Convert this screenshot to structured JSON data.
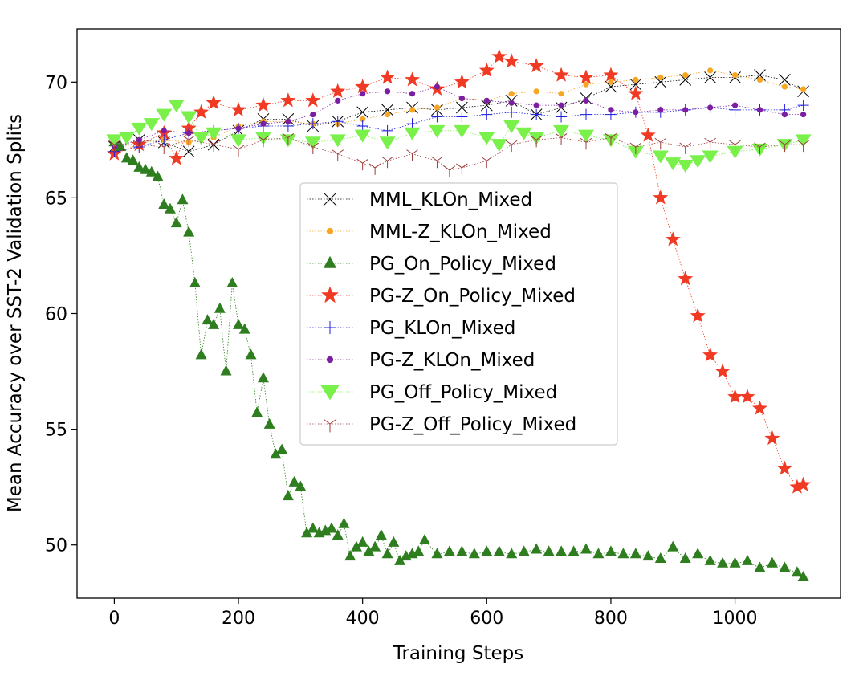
{
  "chart_data": {
    "type": "line",
    "title": "",
    "xlabel": "Training Steps",
    "ylabel": "Mean Accuracy over SST-2 Validation Splits",
    "xlim": [
      -60,
      1170
    ],
    "ylim": [
      47.7,
      72.3
    ],
    "xticks": [
      0,
      200,
      400,
      600,
      800,
      1000
    ],
    "yticks": [
      50,
      55,
      60,
      65,
      70
    ],
    "grid": false,
    "legend_position": "center",
    "series": [
      {
        "name": "MML_KLOn_Mixed",
        "color": "#000000",
        "marker": "x",
        "points": [
          [
            0,
            67.2
          ],
          [
            40,
            67.5
          ],
          [
            80,
            67.4
          ],
          [
            120,
            67.0
          ],
          [
            160,
            67.3
          ],
          [
            200,
            67.9
          ],
          [
            240,
            68.4
          ],
          [
            280,
            68.4
          ],
          [
            320,
            68.1
          ],
          [
            360,
            68.3
          ],
          [
            400,
            68.7
          ],
          [
            440,
            68.8
          ],
          [
            480,
            68.9
          ],
          [
            520,
            68.8
          ],
          [
            560,
            68.9
          ],
          [
            600,
            69.0
          ],
          [
            640,
            69.2
          ],
          [
            680,
            68.6
          ],
          [
            720,
            68.9
          ],
          [
            760,
            69.3
          ],
          [
            800,
            69.8
          ],
          [
            840,
            69.9
          ],
          [
            880,
            70.0
          ],
          [
            920,
            70.1
          ],
          [
            960,
            70.2
          ],
          [
            1000,
            70.2
          ],
          [
            1040,
            70.3
          ],
          [
            1080,
            70.1
          ],
          [
            1110,
            69.6
          ]
        ]
      },
      {
        "name": "MML-Z_KLOn_Mixed",
        "color": "#f5a623",
        "marker": "o-small",
        "points": [
          [
            0,
            67.1
          ],
          [
            40,
            67.4
          ],
          [
            80,
            67.5
          ],
          [
            120,
            67.4
          ],
          [
            160,
            67.6
          ],
          [
            200,
            68.1
          ],
          [
            240,
            68.3
          ],
          [
            280,
            68.3
          ],
          [
            320,
            68.2
          ],
          [
            360,
            68.2
          ],
          [
            400,
            68.4
          ],
          [
            440,
            68.6
          ],
          [
            480,
            68.8
          ],
          [
            520,
            68.9
          ],
          [
            560,
            69.3
          ],
          [
            600,
            69.2
          ],
          [
            640,
            69.5
          ],
          [
            680,
            69.6
          ],
          [
            720,
            69.5
          ],
          [
            760,
            69.9
          ],
          [
            800,
            70.0
          ],
          [
            840,
            70.1
          ],
          [
            880,
            70.2
          ],
          [
            920,
            70.3
          ],
          [
            960,
            70.5
          ],
          [
            1000,
            70.3
          ],
          [
            1040,
            70.1
          ],
          [
            1080,
            69.8
          ],
          [
            1110,
            69.7
          ]
        ]
      },
      {
        "name": "PG_On_Policy_Mixed",
        "color": "#2e7d1f",
        "marker": "^",
        "points": [
          [
            0,
            67.4
          ],
          [
            10,
            67.2
          ],
          [
            20,
            66.7
          ],
          [
            30,
            66.6
          ],
          [
            40,
            66.3
          ],
          [
            50,
            66.2
          ],
          [
            60,
            66.1
          ],
          [
            70,
            65.9
          ],
          [
            80,
            64.7
          ],
          [
            90,
            64.5
          ],
          [
            100,
            63.9
          ],
          [
            110,
            64.9
          ],
          [
            120,
            63.5
          ],
          [
            130,
            61.3
          ],
          [
            140,
            58.2
          ],
          [
            150,
            59.7
          ],
          [
            160,
            59.5
          ],
          [
            170,
            60.2
          ],
          [
            180,
            57.5
          ],
          [
            190,
            61.3
          ],
          [
            200,
            59.5
          ],
          [
            210,
            59.3
          ],
          [
            220,
            58.2
          ],
          [
            230,
            55.7
          ],
          [
            240,
            57.2
          ],
          [
            250,
            55.2
          ],
          [
            260,
            53.9
          ],
          [
            270,
            54.1
          ],
          [
            280,
            52.1
          ],
          [
            290,
            52.7
          ],
          [
            300,
            52.5
          ],
          [
            310,
            50.5
          ],
          [
            320,
            50.7
          ],
          [
            330,
            50.5
          ],
          [
            340,
            50.6
          ],
          [
            350,
            50.7
          ],
          [
            360,
            50.4
          ],
          [
            370,
            50.9
          ],
          [
            380,
            49.5
          ],
          [
            390,
            49.9
          ],
          [
            400,
            50.1
          ],
          [
            410,
            49.7
          ],
          [
            420,
            49.9
          ],
          [
            430,
            50.4
          ],
          [
            440,
            49.6
          ],
          [
            450,
            50.1
          ],
          [
            460,
            49.3
          ],
          [
            470,
            49.5
          ],
          [
            480,
            49.6
          ],
          [
            490,
            49.7
          ],
          [
            500,
            50.2
          ],
          [
            520,
            49.6
          ],
          [
            540,
            49.7
          ],
          [
            560,
            49.7
          ],
          [
            580,
            49.6
          ],
          [
            600,
            49.7
          ],
          [
            620,
            49.7
          ],
          [
            640,
            49.6
          ],
          [
            660,
            49.7
          ],
          [
            680,
            49.8
          ],
          [
            700,
            49.7
          ],
          [
            720,
            49.7
          ],
          [
            740,
            49.7
          ],
          [
            760,
            49.8
          ],
          [
            780,
            49.6
          ],
          [
            800,
            49.7
          ],
          [
            820,
            49.6
          ],
          [
            840,
            49.6
          ],
          [
            860,
            49.5
          ],
          [
            880,
            49.4
          ],
          [
            900,
            49.9
          ],
          [
            920,
            49.4
          ],
          [
            940,
            49.6
          ],
          [
            960,
            49.3
          ],
          [
            980,
            49.2
          ],
          [
            1000,
            49.2
          ],
          [
            1020,
            49.3
          ],
          [
            1040,
            49.0
          ],
          [
            1060,
            49.2
          ],
          [
            1080,
            49.0
          ],
          [
            1100,
            48.8
          ],
          [
            1110,
            48.6
          ]
        ]
      },
      {
        "name": "PG-Z_On_Policy_Mixed",
        "color": "#f03a24",
        "marker": "*",
        "points": [
          [
            0,
            66.9
          ],
          [
            40,
            67.3
          ],
          [
            80,
            67.8
          ],
          [
            100,
            66.7
          ],
          [
            120,
            68.0
          ],
          [
            140,
            68.7
          ],
          [
            160,
            69.1
          ],
          [
            200,
            68.8
          ],
          [
            240,
            69.0
          ],
          [
            280,
            69.2
          ],
          [
            320,
            69.2
          ],
          [
            360,
            69.6
          ],
          [
            400,
            69.8
          ],
          [
            440,
            70.2
          ],
          [
            480,
            70.1
          ],
          [
            520,
            69.7
          ],
          [
            560,
            70.0
          ],
          [
            600,
            70.5
          ],
          [
            620,
            71.1
          ],
          [
            640,
            70.9
          ],
          [
            680,
            70.7
          ],
          [
            720,
            70.3
          ],
          [
            760,
            70.2
          ],
          [
            800,
            70.3
          ],
          [
            840,
            69.5
          ],
          [
            860,
            67.7
          ],
          [
            880,
            65.0
          ],
          [
            900,
            63.2
          ],
          [
            920,
            61.5
          ],
          [
            940,
            59.9
          ],
          [
            960,
            58.2
          ],
          [
            980,
            57.5
          ],
          [
            1000,
            56.4
          ],
          [
            1020,
            56.4
          ],
          [
            1040,
            55.9
          ],
          [
            1060,
            54.6
          ],
          [
            1080,
            53.3
          ],
          [
            1100,
            52.5
          ],
          [
            1110,
            52.6
          ]
        ]
      },
      {
        "name": "PG_KLOn_Mixed",
        "color": "#1f1fe0",
        "marker": "+",
        "points": [
          [
            0,
            67.0
          ],
          [
            40,
            67.2
          ],
          [
            80,
            67.5
          ],
          [
            120,
            67.8
          ],
          [
            160,
            67.9
          ],
          [
            200,
            68.0
          ],
          [
            240,
            68.1
          ],
          [
            280,
            68.1
          ],
          [
            320,
            68.2
          ],
          [
            360,
            68.3
          ],
          [
            400,
            68.1
          ],
          [
            440,
            67.9
          ],
          [
            480,
            68.2
          ],
          [
            520,
            68.5
          ],
          [
            560,
            68.5
          ],
          [
            600,
            68.6
          ],
          [
            640,
            68.7
          ],
          [
            680,
            68.6
          ],
          [
            720,
            68.5
          ],
          [
            760,
            68.6
          ],
          [
            800,
            68.6
          ],
          [
            840,
            68.7
          ],
          [
            880,
            68.7
          ],
          [
            920,
            68.8
          ],
          [
            960,
            68.9
          ],
          [
            1000,
            68.8
          ],
          [
            1040,
            68.8
          ],
          [
            1080,
            68.8
          ],
          [
            1110,
            69.0
          ]
        ]
      },
      {
        "name": "PG-Z_KLOn_Mixed",
        "color": "#7b1ea2",
        "marker": "o-small",
        "points": [
          [
            0,
            67.2
          ],
          [
            40,
            67.5
          ],
          [
            80,
            67.9
          ],
          [
            120,
            67.8
          ],
          [
            160,
            67.9
          ],
          [
            200,
            68.0
          ],
          [
            240,
            68.2
          ],
          [
            280,
            68.3
          ],
          [
            320,
            68.6
          ],
          [
            360,
            69.2
          ],
          [
            400,
            69.5
          ],
          [
            440,
            69.6
          ],
          [
            480,
            69.5
          ],
          [
            520,
            69.8
          ],
          [
            560,
            69.3
          ],
          [
            600,
            69.2
          ],
          [
            640,
            69.1
          ],
          [
            680,
            69.0
          ],
          [
            720,
            69.0
          ],
          [
            760,
            69.2
          ],
          [
            800,
            68.8
          ],
          [
            840,
            68.7
          ],
          [
            880,
            68.8
          ],
          [
            920,
            68.8
          ],
          [
            960,
            68.9
          ],
          [
            1000,
            69.0
          ],
          [
            1040,
            68.8
          ],
          [
            1080,
            68.6
          ],
          [
            1110,
            68.6
          ]
        ]
      },
      {
        "name": "PG_Off_Policy_Mixed",
        "color": "#7af04a",
        "marker": "v",
        "points": [
          [
            0,
            67.5
          ],
          [
            20,
            67.6
          ],
          [
            40,
            68.0
          ],
          [
            60,
            68.2
          ],
          [
            80,
            68.6
          ],
          [
            100,
            69.0
          ],
          [
            120,
            68.5
          ],
          [
            140,
            67.6
          ],
          [
            160,
            67.8
          ],
          [
            200,
            67.5
          ],
          [
            240,
            67.6
          ],
          [
            280,
            67.5
          ],
          [
            320,
            67.4
          ],
          [
            360,
            67.5
          ],
          [
            400,
            67.7
          ],
          [
            440,
            67.4
          ],
          [
            480,
            67.8
          ],
          [
            520,
            67.9
          ],
          [
            560,
            67.9
          ],
          [
            600,
            67.6
          ],
          [
            620,
            67.3
          ],
          [
            640,
            68.1
          ],
          [
            660,
            67.8
          ],
          [
            680,
            67.6
          ],
          [
            720,
            67.9
          ],
          [
            760,
            67.7
          ],
          [
            800,
            67.5
          ],
          [
            840,
            67.0
          ],
          [
            880,
            66.8
          ],
          [
            900,
            66.5
          ],
          [
            920,
            66.4
          ],
          [
            940,
            66.6
          ],
          [
            960,
            66.8
          ],
          [
            1000,
            67.0
          ],
          [
            1040,
            67.1
          ],
          [
            1080,
            67.3
          ],
          [
            1110,
            67.5
          ]
        ]
      },
      {
        "name": "PG-Z_Off_Policy_Mixed",
        "color": "#9e3b3b",
        "marker": "tri",
        "points": [
          [
            0,
            67.3
          ],
          [
            40,
            67.3
          ],
          [
            80,
            67.2
          ],
          [
            120,
            67.5
          ],
          [
            160,
            67.3
          ],
          [
            200,
            67.1
          ],
          [
            240,
            67.5
          ],
          [
            280,
            67.6
          ],
          [
            320,
            67.2
          ],
          [
            360,
            66.9
          ],
          [
            400,
            66.5
          ],
          [
            420,
            66.3
          ],
          [
            440,
            66.6
          ],
          [
            480,
            66.9
          ],
          [
            520,
            66.6
          ],
          [
            540,
            66.2
          ],
          [
            560,
            66.3
          ],
          [
            600,
            66.6
          ],
          [
            640,
            67.3
          ],
          [
            680,
            67.5
          ],
          [
            720,
            67.6
          ],
          [
            760,
            67.4
          ],
          [
            800,
            67.6
          ],
          [
            840,
            67.2
          ],
          [
            880,
            67.4
          ],
          [
            920,
            67.2
          ],
          [
            960,
            67.4
          ],
          [
            1000,
            67.3
          ],
          [
            1040,
            67.2
          ],
          [
            1080,
            67.3
          ],
          [
            1110,
            67.3
          ]
        ]
      }
    ]
  }
}
